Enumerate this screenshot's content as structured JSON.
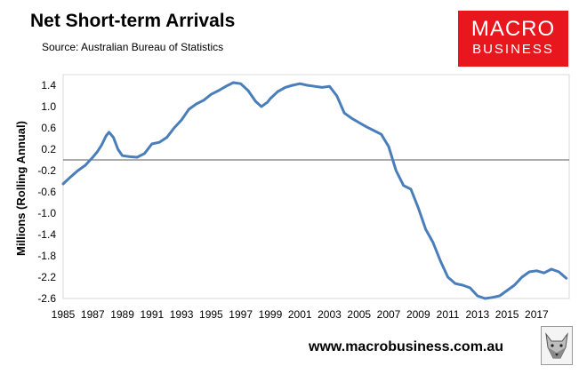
{
  "header": {
    "title": "Net Short-term Arrivals",
    "subtitle": "Source: Australian Bureau of Statistics"
  },
  "logo": {
    "line1": "MACRO",
    "line2": "BUSINESS",
    "background": "#e8171d"
  },
  "footer": {
    "url": "www.macrobusiness.com.au",
    "icon": "wolf-icon"
  },
  "chart_data": {
    "type": "line",
    "title": "Net Short-term Arrivals",
    "ylabel": "Millions (Rolling Annual)",
    "xlabel": "",
    "ylim": [
      -2.6,
      1.6
    ],
    "xlim": [
      1985,
      2019.2
    ],
    "yticks": [
      1.4,
      1.0,
      0.6,
      0.2,
      -0.2,
      -0.6,
      -1.0,
      -1.4,
      -1.8,
      -2.2,
      -2.6
    ],
    "ytick_labels": [
      "1.4",
      "1.0",
      "0.6",
      "0.2",
      "-0.2",
      "-0.6",
      "-1.0",
      "-1.4",
      "-1.8",
      "-2.2",
      "-2.6"
    ],
    "xticks": [
      1985,
      1987,
      1989,
      1991,
      1993,
      1995,
      1997,
      1999,
      2001,
      2003,
      2005,
      2007,
      2009,
      2011,
      2013,
      2015,
      2017
    ],
    "xtick_labels": [
      "1985",
      "1987",
      "1989",
      "1991",
      "1993",
      "1995",
      "1997",
      "1999",
      "2001",
      "2003",
      "2005",
      "2007",
      "2009",
      "2011",
      "2013",
      "2015",
      "2017"
    ],
    "zero_line": true,
    "grid": false,
    "line_color": "#4a7ebb",
    "series": [
      {
        "x": [
          1985.0,
          1985.5,
          1986.0,
          1986.5,
          1987.0,
          1987.3,
          1987.6,
          1987.9,
          1988.1,
          1988.4,
          1988.7,
          1989.0,
          1989.5,
          1990.0,
          1990.5,
          1991.0,
          1991.5,
          1992.0,
          1992.5,
          1993.0,
          1993.5,
          1994.0,
          1994.5,
          1995.0,
          1995.5,
          1996.0,
          1996.5,
          1997.0,
          1997.5,
          1998.0,
          1998.4,
          1998.8,
          1999.0,
          1999.5,
          2000.0,
          2000.5,
          2001.0,
          2001.5,
          2002.0,
          2002.5,
          2003.0,
          2003.5,
          2004.0,
          2004.5,
          2005.0,
          2005.5,
          2006.0,
          2006.5,
          2007.0,
          2007.5,
          2008.0,
          2008.5,
          2009.0,
          2009.5,
          2010.0,
          2010.5,
          2011.0,
          2011.5,
          2012.0,
          2012.5,
          2013.0,
          2013.5,
          2014.0,
          2014.5,
          2015.0,
          2015.5,
          2016.0,
          2016.5,
          2017.0,
          2017.5,
          2018.0,
          2018.5,
          2019.0
        ],
        "values": [
          -0.45,
          -0.32,
          -0.2,
          -0.1,
          0.05,
          0.15,
          0.28,
          0.45,
          0.52,
          0.42,
          0.2,
          0.08,
          0.06,
          0.05,
          0.12,
          0.3,
          0.33,
          0.42,
          0.6,
          0.75,
          0.95,
          1.05,
          1.12,
          1.23,
          1.3,
          1.38,
          1.45,
          1.43,
          1.3,
          1.1,
          1.0,
          1.08,
          1.15,
          1.28,
          1.36,
          1.4,
          1.43,
          1.4,
          1.38,
          1.36,
          1.38,
          1.2,
          0.88,
          0.78,
          0.7,
          0.62,
          0.55,
          0.48,
          0.25,
          -0.2,
          -0.48,
          -0.55,
          -0.9,
          -1.3,
          -1.55,
          -1.9,
          -2.2,
          -2.32,
          -2.35,
          -2.4,
          -2.55,
          -2.6,
          -2.58,
          -2.55,
          -2.45,
          -2.35,
          -2.2,
          -2.1,
          -2.08,
          -2.12,
          -2.05,
          -2.1,
          -2.22
        ]
      }
    ]
  }
}
